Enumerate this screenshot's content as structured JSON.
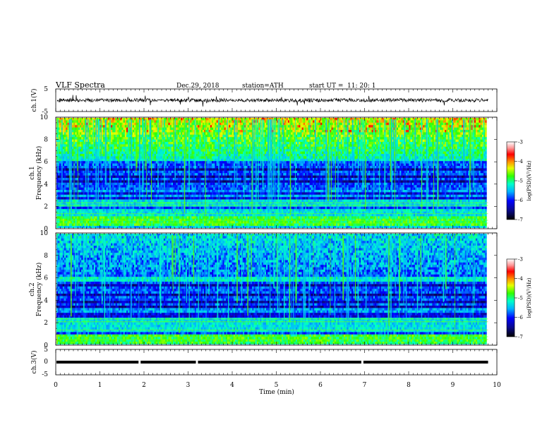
{
  "header": {
    "title": "VLF  Spectra",
    "date": "Dec.29, 2018",
    "station": "station=ATH",
    "start_label": "start  UT  =",
    "start_time": "11: 20: 1"
  },
  "chart_data": [
    {
      "type": "line",
      "name": "ch1-waveform",
      "ylabel": "ch.1(V)",
      "ylim": [
        -5,
        5
      ],
      "yticks": [
        "5",
        "-5"
      ],
      "xlim": [
        0,
        10
      ],
      "baseline": 0,
      "color": "#000000"
    },
    {
      "type": "heatmap",
      "name": "ch1-spectrogram",
      "ylabel": "ch.1\nFrequency  (kHz)",
      "ylabel_lines": [
        "ch.1",
        "Frequency  (kHz)"
      ],
      "ylim": [
        0,
        10
      ],
      "yticks": [
        "0",
        "2",
        "4",
        "6",
        "8",
        "10"
      ],
      "xlim": [
        0,
        9.8
      ],
      "colorbar": {
        "label": "log(PSD)(V²/Hz)",
        "range": [
          -7,
          -3
        ],
        "ticks": [
          "-3",
          "-4",
          "-5",
          "-6",
          "-7"
        ]
      }
    },
    {
      "type": "heatmap",
      "name": "ch2-spectrogram",
      "ylabel_lines": [
        "ch.2",
        "Frequency  (kHz)"
      ],
      "ylim": [
        0,
        10
      ],
      "yticks": [
        "0",
        "2",
        "4",
        "6",
        "8",
        "10"
      ],
      "xlim": [
        0,
        9.8
      ],
      "colorbar": {
        "label": "log(PSD)(V²/Hz)",
        "range": [
          -7,
          -3
        ],
        "ticks": [
          "-3",
          "-4",
          "-5",
          "-6",
          "-7"
        ]
      }
    },
    {
      "type": "line",
      "name": "ch3-waveform",
      "ylabel": "ch.3(V)",
      "ylim": [
        -5,
        5
      ],
      "yticks": [
        "5",
        "0",
        "-5"
      ],
      "xlim": [
        0,
        10
      ],
      "level": 0,
      "gaps_min": [
        1.9,
        3.2,
        6.95
      ],
      "color": "#000000"
    }
  ],
  "xaxis": {
    "label": "Time  (min)",
    "ticks": [
      "0",
      "1",
      "2",
      "3",
      "4",
      "5",
      "6",
      "7",
      "8",
      "9",
      "10"
    ],
    "xlim": [
      0,
      10
    ]
  }
}
